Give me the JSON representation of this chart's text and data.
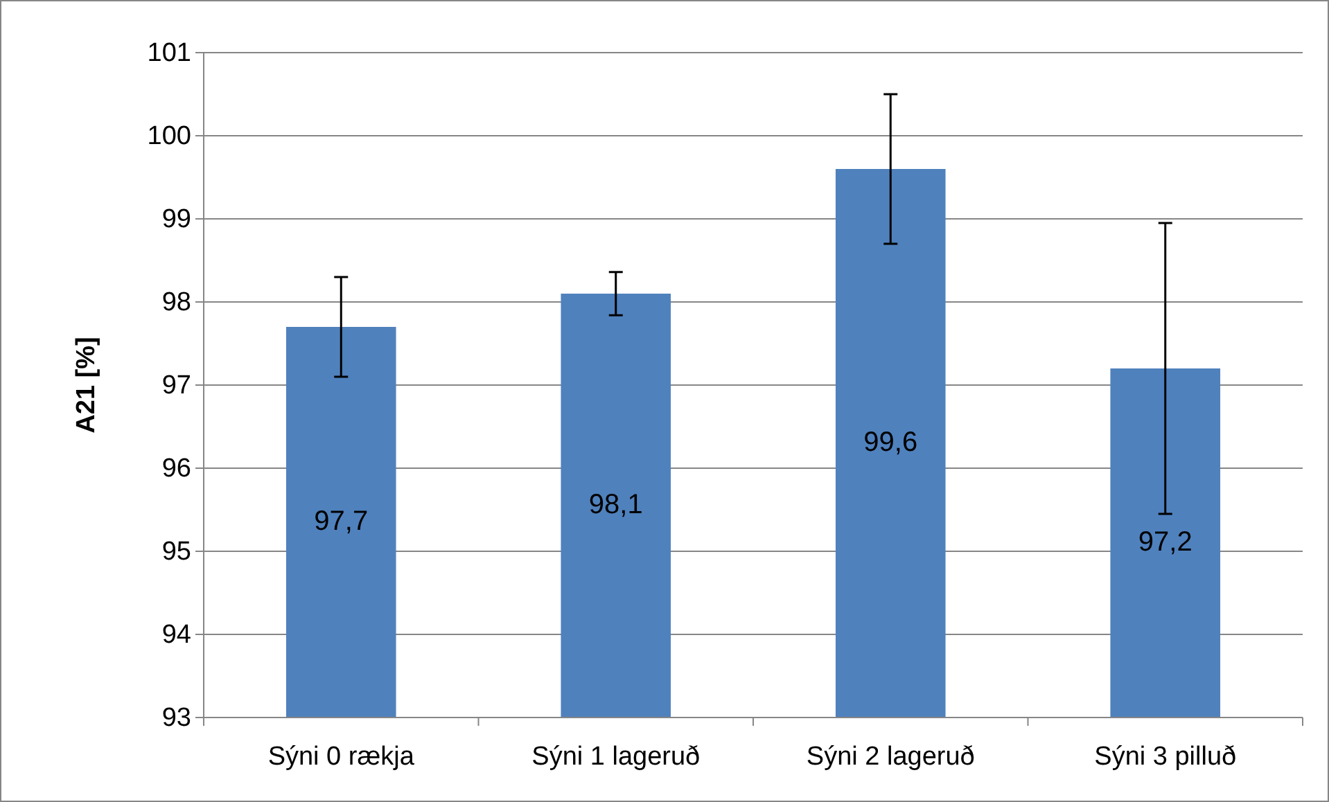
{
  "chart_data": {
    "type": "bar",
    "ylabel": "A21 [%]",
    "categories": [
      "Sýni 0 rækja",
      "Sýni 1 lageruð",
      "Sýni 2 lageruð",
      "Sýni 3 pilluð"
    ],
    "values": [
      97.7,
      98.1,
      99.6,
      97.2
    ],
    "value_labels": [
      "97,7",
      "98,1",
      "99,6",
      "97,2"
    ],
    "errors": [
      0.6,
      0.26,
      0.9,
      1.75
    ],
    "color": "#4f81bd",
    "ylim": [
      93,
      101
    ],
    "yticks": [
      93,
      94,
      95,
      96,
      97,
      98,
      99,
      100,
      101
    ],
    "grid": "y"
  }
}
